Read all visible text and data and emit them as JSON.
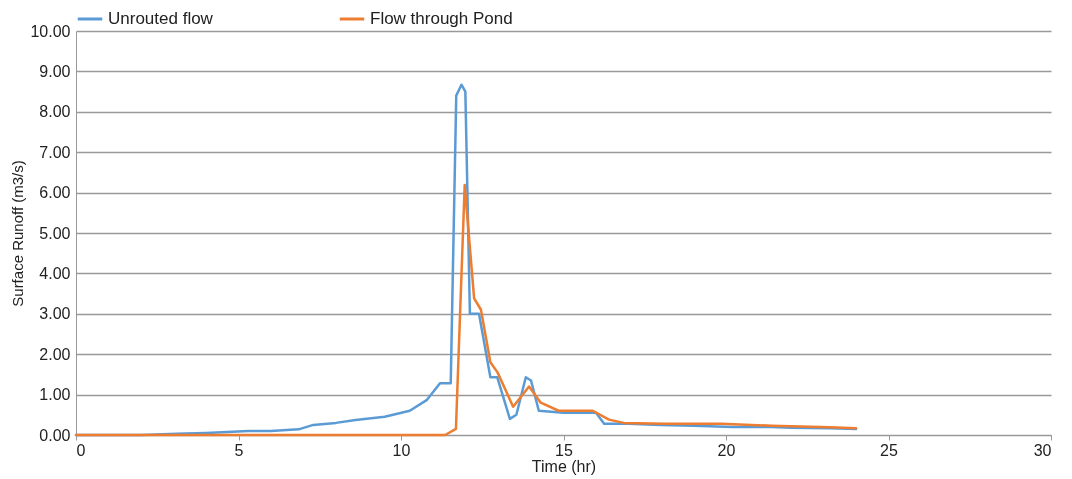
{
  "chart_data": {
    "type": "line",
    "xlabel": "Time (hr)",
    "ylabel": "Surface Runoff (m3/s)",
    "xlim": [
      0,
      30
    ],
    "xticks": [
      0,
      5,
      10,
      15,
      20,
      25,
      30
    ],
    "ylim": [
      0,
      10
    ],
    "yticks": [
      {
        "value": 0,
        "label": "0.00"
      },
      {
        "value": 1,
        "label": "1.00"
      },
      {
        "value": 2,
        "label": "2.00"
      },
      {
        "value": 3,
        "label": "3.00"
      },
      {
        "value": 4,
        "label": "4.00"
      },
      {
        "value": 5,
        "label": "5.00"
      },
      {
        "value": 6,
        "label": "6.00"
      },
      {
        "value": 7,
        "label": "7.00"
      },
      {
        "value": 8,
        "label": "8.00"
      },
      {
        "value": 9,
        "label": "9.00"
      },
      {
        "value": 10,
        "label": "10.00"
      }
    ],
    "grid": "y",
    "legend": "top",
    "marker": "none",
    "line_style": "solid",
    "series": [
      {
        "name": "Unrouted flow",
        "color": "#5b9bd5",
        "x": [
          0,
          2,
          3.1,
          4,
          5.3,
          6,
          6.85,
          7.3,
          8,
          8.6,
          9.5,
          10.27,
          10.8,
          11.2,
          11.48,
          11.53,
          11.7,
          11.86,
          11.98,
          12.12,
          12.4,
          12.75,
          12.96,
          13.35,
          13.55,
          13.84,
          14.0,
          14.24,
          15,
          16.0,
          16.25,
          17,
          18,
          19,
          20.2,
          21.4,
          22,
          23.2,
          24
        ],
        "values": [
          0,
          0,
          0.03,
          0.05,
          0.1,
          0.1,
          0.14,
          0.25,
          0.3,
          0.37,
          0.45,
          0.6,
          0.87,
          1.28,
          1.28,
          1.28,
          8.4,
          8.67,
          8.5,
          3.0,
          3.0,
          1.43,
          1.43,
          0.4,
          0.5,
          1.43,
          1.35,
          0.6,
          0.55,
          0.55,
          0.28,
          0.28,
          0.25,
          0.23,
          0.2,
          0.2,
          0.18,
          0.17,
          0.15
        ]
      },
      {
        "name": "Flow through Pond",
        "color": "#ed7d31",
        "x": [
          0,
          5,
          10,
          11.36,
          11.69,
          11.96,
          12.25,
          12.46,
          12.75,
          12.97,
          13.45,
          13.94,
          14.3,
          14.85,
          15.9,
          16.4,
          16.85,
          18.1,
          19.85,
          21.4,
          23.2,
          24
        ],
        "values": [
          0,
          0,
          0,
          0,
          0.15,
          6.19,
          3.38,
          3.1,
          1.8,
          1.55,
          0.7,
          1.2,
          0.8,
          0.6,
          0.6,
          0.38,
          0.3,
          0.28,
          0.28,
          0.23,
          0.19,
          0.17
        ]
      }
    ]
  }
}
